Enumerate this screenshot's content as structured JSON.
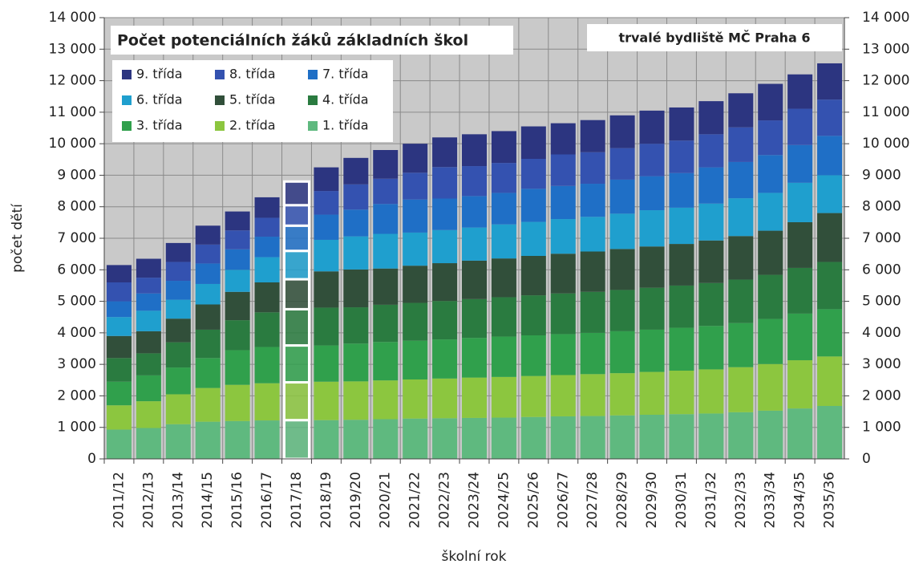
{
  "chart_data": {
    "type": "stacked_bar",
    "title": "Počet potenciálních žáků základních škol",
    "annotation": "trvalé bydliště MČ Praha 6",
    "y_label": "počet dětí",
    "x_label": "školní rok",
    "categories": [
      "2011/12",
      "2012/13",
      "2013/14",
      "2014/15",
      "2015/16",
      "2016/17",
      "2017/18",
      "2018/19",
      "2019/20",
      "2020/21",
      "2021/22",
      "2022/23",
      "2023/24",
      "2024/25",
      "2025/26",
      "2026/27",
      "2027/28",
      "2028/29",
      "2029/30",
      "2030/31",
      "2031/32",
      "2032/33",
      "2033/34",
      "2034/35",
      "2035/36"
    ],
    "series": [
      {
        "name": "1. třída",
        "color": "#5fb97f",
        "values": [
          930,
          980,
          1100,
          1180,
          1200,
          1220,
          1230,
          1230,
          1240,
          1260,
          1280,
          1290,
          1300,
          1310,
          1330,
          1350,
          1360,
          1380,
          1400,
          1420,
          1440,
          1480,
          1530,
          1600,
          1680
        ]
      },
      {
        "name": "2. třída",
        "color": "#8cc63f",
        "values": [
          770,
          850,
          950,
          1070,
          1150,
          1180,
          1200,
          1220,
          1220,
          1230,
          1240,
          1260,
          1280,
          1290,
          1300,
          1310,
          1330,
          1340,
          1360,
          1380,
          1400,
          1430,
          1480,
          1530,
          1570
        ]
      },
      {
        "name": "3. třída",
        "color": "#30a04c",
        "values": [
          750,
          820,
          850,
          950,
          1100,
          1150,
          1170,
          1150,
          1200,
          1220,
          1230,
          1240,
          1260,
          1280,
          1290,
          1300,
          1310,
          1330,
          1340,
          1360,
          1380,
          1400,
          1430,
          1480,
          1500
        ]
      },
      {
        "name": "4. třída",
        "color": "#2a7b40",
        "values": [
          750,
          700,
          800,
          900,
          950,
          1100,
          1150,
          1200,
          1150,
          1180,
          1200,
          1220,
          1230,
          1250,
          1270,
          1290,
          1300,
          1310,
          1330,
          1340,
          1360,
          1380,
          1400,
          1450,
          1500
        ]
      },
      {
        "name": "5. třída",
        "color": "#314f3a",
        "values": [
          700,
          700,
          750,
          800,
          900,
          950,
          950,
          1150,
          1200,
          1150,
          1180,
          1200,
          1220,
          1230,
          1250,
          1260,
          1280,
          1300,
          1310,
          1320,
          1350,
          1380,
          1400,
          1450,
          1550
        ]
      },
      {
        "name": "6. třída",
        "color": "#1f9fce",
        "values": [
          600,
          650,
          600,
          650,
          700,
          800,
          900,
          1000,
          1050,
          1100,
          1050,
          1050,
          1050,
          1080,
          1080,
          1100,
          1100,
          1120,
          1150,
          1150,
          1170,
          1200,
          1200,
          1250,
          1200
        ]
      },
      {
        "name": "7. třída",
        "color": "#1f6fc6",
        "values": [
          500,
          550,
          600,
          650,
          650,
          650,
          800,
          800,
          850,
          950,
          1050,
          1000,
          1000,
          1000,
          1050,
          1050,
          1050,
          1080,
          1080,
          1100,
          1150,
          1150,
          1200,
          1200,
          1250
        ]
      },
      {
        "name": "8. třída",
        "color": "#3452b0",
        "values": [
          600,
          500,
          600,
          600,
          600,
          600,
          650,
          750,
          800,
          800,
          850,
          1000,
          950,
          950,
          950,
          1000,
          1000,
          1000,
          1030,
          1030,
          1050,
          1100,
          1100,
          1150,
          1150
        ]
      },
      {
        "name": "9. třída",
        "color": "#2c3580",
        "values": [
          550,
          600,
          600,
          600,
          600,
          650,
          750,
          750,
          840,
          910,
          920,
          940,
          1010,
          1010,
          1030,
          990,
          1020,
          1040,
          1050,
          1050,
          1050,
          1080,
          1160,
          1090,
          1150
        ]
      }
    ],
    "highlight_index": 6,
    "ylim": [
      0,
      14000
    ],
    "yticks": [
      0,
      {
        "value": 1000,
        "label": "1 000"
      },
      {
        "value": 2000,
        "label": "2 000"
      },
      {
        "value": 3000,
        "label": "3 000"
      },
      {
        "value": 4000,
        "label": "4 000"
      },
      {
        "value": 5000,
        "label": "5 000"
      },
      {
        "value": 6000,
        "label": "6 000"
      },
      {
        "value": 7000,
        "label": "7 000"
      },
      {
        "value": 8000,
        "label": "8 000"
      },
      {
        "value": 9000,
        "label": "9 000"
      },
      {
        "value": 10000,
        "label": "10 000"
      },
      {
        "value": 11000,
        "label": "11 000"
      },
      {
        "value": 12000,
        "label": "12 000"
      },
      {
        "value": 13000,
        "label": "13 000"
      },
      {
        "value": 14000,
        "label": "14 000"
      }
    ],
    "y2lim": [
      0,
      14000
    ],
    "y2ticks": [
      0,
      {
        "value": 1000,
        "label": "1 000"
      },
      {
        "value": 2000,
        "label": "2 000"
      },
      {
        "value": 3000,
        "label": "3 000"
      },
      {
        "value": 4000,
        "label": "4 000"
      },
      {
        "value": 5000,
        "label": "5 000"
      },
      {
        "value": 6000,
        "label": "6 000"
      },
      {
        "value": 7000,
        "label": "7 000"
      },
      {
        "value": 8000,
        "label": "8 000"
      },
      {
        "value": 9000,
        "label": "9 000"
      },
      {
        "value": 10000,
        "label": "10 000"
      },
      {
        "value": 11000,
        "label": "11 000"
      },
      {
        "value": 12000,
        "label": "12 000"
      },
      {
        "value": 13000,
        "label": "13 000"
      },
      {
        "value": 14000,
        "label": "14 000"
      }
    ],
    "grid": true
  }
}
